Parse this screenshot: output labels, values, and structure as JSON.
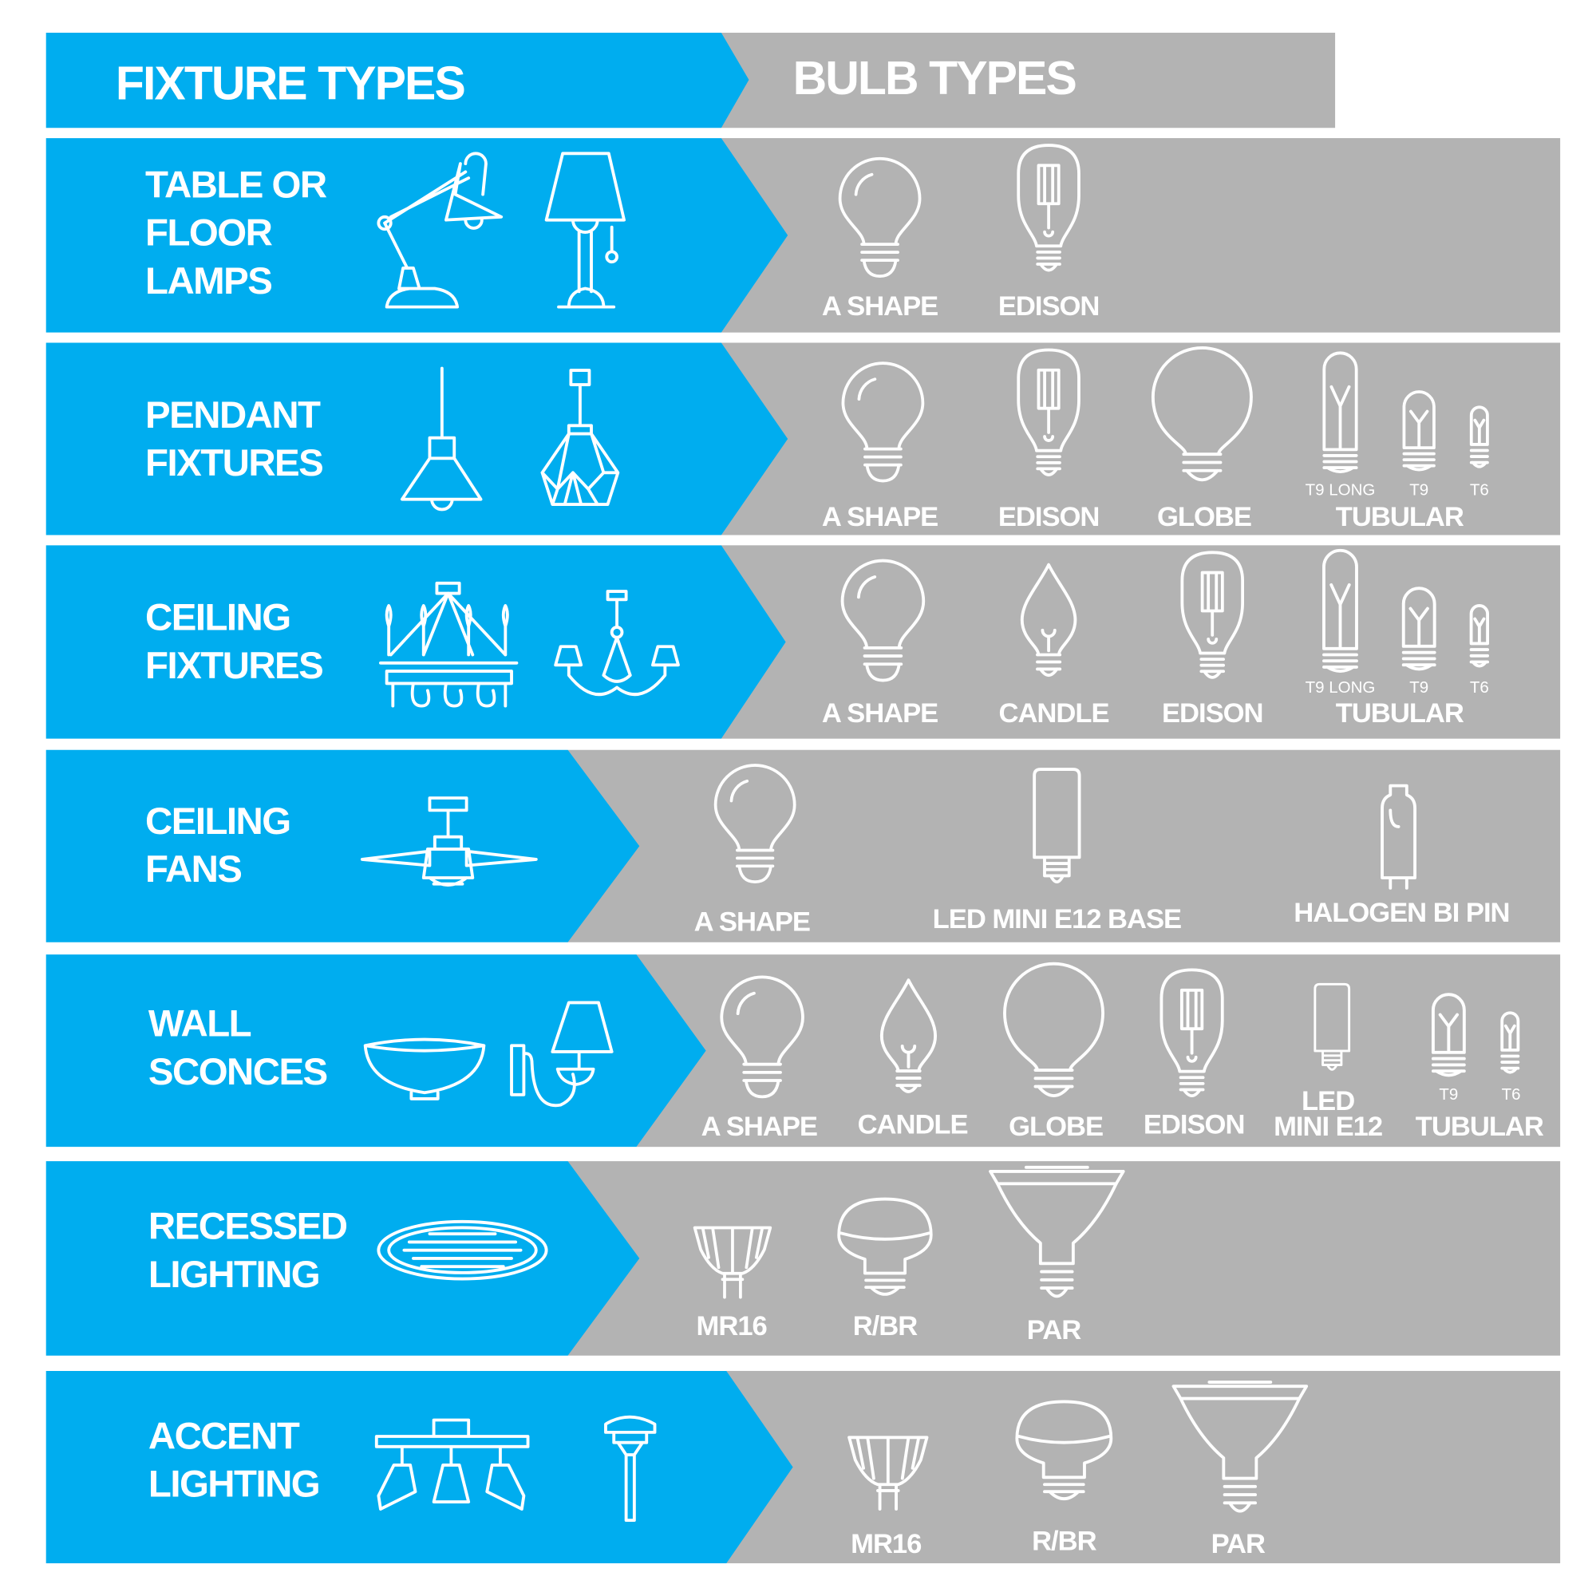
{
  "header": {
    "fixture_title": "FIXTURE TYPES",
    "bulb_title": "BULB TYPES"
  },
  "colors": {
    "fixture_blue": "#00adef",
    "bulb_gray": "#b3b3b3",
    "text": "#ffffff"
  },
  "rows": [
    {
      "fixture_lines": [
        "TABLE OR",
        "FLOOR",
        "LAMPS"
      ],
      "fixture_icons": [
        "desk-lamp-icon",
        "floor-lamp-icon"
      ],
      "bulbs": [
        {
          "type": "a-shape",
          "label": "A SHAPE"
        },
        {
          "type": "edison",
          "label": "EDISON"
        }
      ]
    },
    {
      "fixture_lines": [
        "PENDANT",
        "FIXTURES"
      ],
      "fixture_icons": [
        "cone-pendant-icon",
        "geometric-pendant-icon"
      ],
      "bulbs": [
        {
          "type": "a-shape",
          "label": "A SHAPE"
        },
        {
          "type": "edison",
          "label": "EDISON"
        },
        {
          "type": "globe",
          "label": "GLOBE"
        },
        {
          "type": "t9-long",
          "sublabel": "T9 LONG"
        },
        {
          "type": "t9",
          "sublabel": "T9"
        },
        {
          "type": "t6",
          "sublabel": "T6"
        }
      ],
      "group_label": "TUBULAR"
    },
    {
      "fixture_lines": [
        "CEILING",
        "FIXTURES"
      ],
      "fixture_icons": [
        "chandelier-icon",
        "small-chandelier-icon"
      ],
      "bulbs": [
        {
          "type": "a-shape",
          "label": "A SHAPE"
        },
        {
          "type": "candle",
          "label": "CANDLE"
        },
        {
          "type": "edison",
          "label": "EDISON"
        },
        {
          "type": "t9-long",
          "sublabel": "T9 LONG"
        },
        {
          "type": "t9",
          "sublabel": "T9"
        },
        {
          "type": "t6",
          "sublabel": "T6"
        }
      ],
      "group_label": "TUBULAR"
    },
    {
      "fixture_lines": [
        "CEILING",
        "FANS"
      ],
      "fixture_icons": [
        "ceiling-fan-icon"
      ],
      "bulbs": [
        {
          "type": "a-shape",
          "label": "A SHAPE"
        },
        {
          "type": "led-corn",
          "label": "LED MINI E12 BASE"
        },
        {
          "type": "halogen",
          "label": "HALOGEN BI PIN"
        }
      ]
    },
    {
      "fixture_lines": [
        "WALL",
        "SCONCES"
      ],
      "fixture_icons": [
        "bowl-sconce-icon",
        "shade-sconce-icon"
      ],
      "bulbs": [
        {
          "type": "a-shape",
          "label": "A SHAPE"
        },
        {
          "type": "candle",
          "label": "CANDLE"
        },
        {
          "type": "globe",
          "label": "GLOBE"
        },
        {
          "type": "edison",
          "label": "EDISON"
        },
        {
          "type": "led-corn",
          "label": "LED",
          "label2": "MINI E12"
        },
        {
          "type": "t9",
          "sublabel": "T9"
        },
        {
          "type": "t6",
          "sublabel": "T6"
        }
      ],
      "group_label": "TUBULAR"
    },
    {
      "fixture_lines": [
        "RECESSED",
        "LIGHTING"
      ],
      "fixture_icons": [
        "recessed-light-icon"
      ],
      "bulbs": [
        {
          "type": "mr16",
          "label": "MR16"
        },
        {
          "type": "rbr",
          "label": "R/BR"
        },
        {
          "type": "par",
          "label": "PAR"
        }
      ]
    },
    {
      "fixture_lines": [
        "ACCENT",
        "LIGHTING"
      ],
      "fixture_icons": [
        "track-light-icon",
        "path-light-icon"
      ],
      "bulbs": [
        {
          "type": "mr16",
          "label": "MR16"
        },
        {
          "type": "rbr",
          "label": "R/BR"
        },
        {
          "type": "par",
          "label": "PAR"
        }
      ]
    }
  ]
}
